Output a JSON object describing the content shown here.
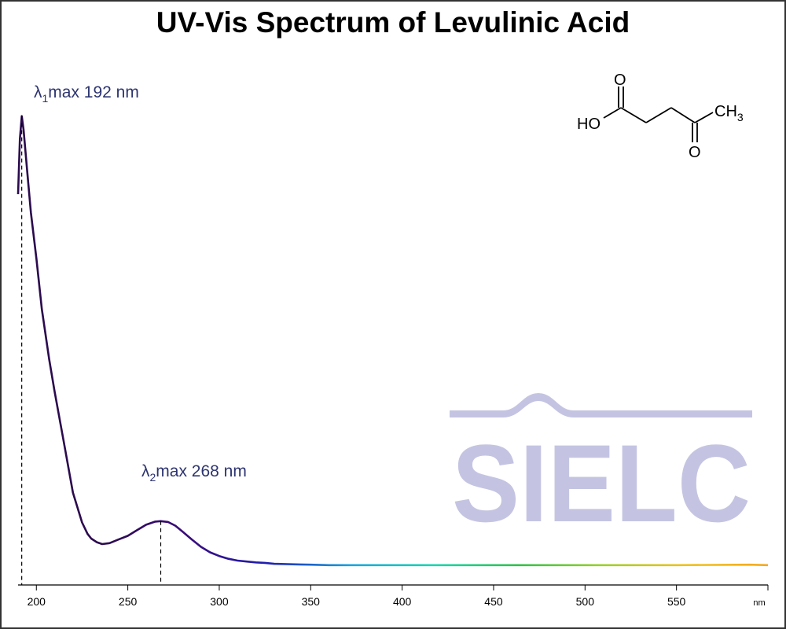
{
  "title": "UV-Vis Spectrum of Levulinic Acid",
  "watermark": "SIELC",
  "chart_data": {
    "type": "line",
    "title": "UV-Vis Spectrum of Levulinic Acid",
    "xlabel": "nm",
    "ylabel": "",
    "xlim": [
      190,
      600
    ],
    "ylim": [
      0,
      1
    ],
    "x_ticks": [
      200,
      250,
      300,
      350,
      400,
      450,
      500,
      550
    ],
    "y_axis_visible": false,
    "grid": false,
    "series": [
      {
        "x": [
          190,
          191,
          192,
          193,
          195,
          197,
          200,
          203,
          207,
          210,
          215,
          220,
          225,
          228,
          230,
          233,
          236,
          240,
          245,
          250,
          255,
          260,
          265,
          268,
          272,
          276,
          280,
          285,
          290,
          295,
          300,
          305,
          310,
          315,
          320,
          325,
          330,
          340,
          350,
          360,
          380,
          400,
          450,
          500,
          550,
          590,
          600
        ],
        "y": [
          0.81,
          0.93,
          0.98,
          0.95,
          0.86,
          0.77,
          0.67,
          0.56,
          0.45,
          0.38,
          0.27,
          0.16,
          0.095,
          0.07,
          0.06,
          0.052,
          0.048,
          0.05,
          0.058,
          0.066,
          0.078,
          0.09,
          0.097,
          0.098,
          0.096,
          0.088,
          0.075,
          0.058,
          0.042,
          0.03,
          0.022,
          0.016,
          0.012,
          0.01,
          0.008,
          0.007,
          0.005,
          0.004,
          0.003,
          0.002,
          0.002,
          0.002,
          0.002,
          0.002,
          0.002,
          0.003,
          0.002
        ],
        "gradient_colors": [
          "#2b0a4e",
          "#2b0a4e",
          "#3a0a7a",
          "#1f1fb0",
          "#18a6e0",
          "#17d8b0",
          "#2ec24a",
          "#9bd12a",
          "#f0c21a",
          "#f5a81c"
        ]
      }
    ],
    "annotations": [
      {
        "label": "λ",
        "subscript": "1",
        "rest": "max  192 nm",
        "x": 192
      },
      {
        "label": "λ",
        "subscript": "2",
        "rest": "max  268 nm",
        "x": 268
      }
    ]
  },
  "molecule": {
    "name": "levulinic-acid-structure",
    "labels": {
      "ho": "HO",
      "o_acid": "O",
      "o_ketone": "O",
      "ch": "CH",
      "sub3": "3"
    }
  }
}
